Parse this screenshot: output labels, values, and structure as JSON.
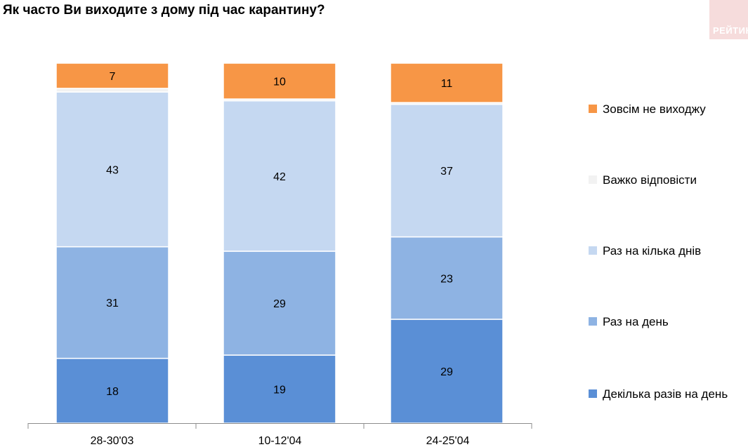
{
  "title": "Як часто Ви виходите з дому під час карантину?",
  "logo_text": "РЕЙТИНГ",
  "chart_data": {
    "type": "bar",
    "stacked": true,
    "percent_stacked": true,
    "title": "Як часто Ви виходите з дому під час карантину?",
    "categories": [
      "28-30'03",
      "10-12'04",
      "24-25'04"
    ],
    "series": [
      {
        "name": "Декілька разів на день",
        "color": "#5a8fd6",
        "values": [
          18,
          19,
          29
        ]
      },
      {
        "name": "Раз на день",
        "color": "#8eb3e3",
        "values": [
          31,
          29,
          23
        ]
      },
      {
        "name": "Раз на кілька днів",
        "color": "#c5d8f1",
        "values": [
          43,
          42,
          37
        ]
      },
      {
        "name": "Важко відповісти",
        "color": "#f2f2f2",
        "values": [
          1,
          0.5,
          0.5
        ]
      },
      {
        "name": "Зовсім не виходжу",
        "color": "#f79646",
        "values": [
          7,
          10,
          11
        ]
      }
    ],
    "legend_order": [
      "Зовсім не виходжу",
      "Важко відповісти",
      "Раз на кілька днів",
      "Раз на день",
      "Декілька разів на день"
    ],
    "legend_position": "right",
    "grid": false
  }
}
